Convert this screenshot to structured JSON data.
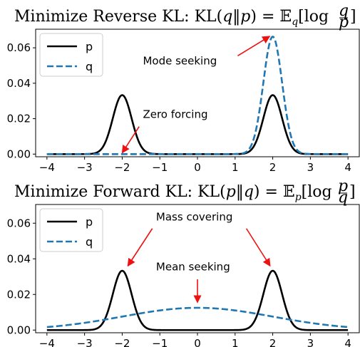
{
  "colors": {
    "p": "#000000",
    "q": "#1f77b4",
    "arrow": "#ee1111"
  },
  "chart_data": [
    {
      "type": "line",
      "title": "Minimize Reverse KL: KL(q‖p) = 𝔼_q[log q/p]",
      "title_parts": {
        "main": "Minimize Reverse KL: KL(",
        "a": "q",
        "sep": "‖",
        "b": "p",
        "mid": ") = ",
        "E": "𝔼",
        "sub": "q",
        "log": "[log ",
        "num": "q",
        "den": "p",
        "close": "]"
      },
      "xlim": [
        -4.3,
        4.3
      ],
      "ylim": [
        -0.0015,
        0.0705
      ],
      "xticks": [
        -4,
        -3,
        -2,
        -1,
        0,
        1,
        2,
        3,
        4
      ],
      "xtick_labels": [
        "−4",
        "−3",
        "−2",
        "−1",
        "0",
        "1",
        "2",
        "3",
        "4"
      ],
      "yticks": [
        0,
        0.02,
        0.04,
        0.06
      ],
      "ytick_labels": [
        "0.00",
        "0.02",
        "0.04",
        "0.06"
      ],
      "grid": false,
      "legend_placement": "upper left",
      "series": [
        {
          "name": "p",
          "style": "solid",
          "x_range": [
            -4,
            4
          ],
          "components": [
            {
              "mean": -2,
              "peak": 0.0333,
              "sd": 0.25
            },
            {
              "mean": 2,
              "peak": 0.0333,
              "sd": 0.25
            }
          ]
        },
        {
          "name": "q",
          "style": "dashed",
          "x_range": [
            -4,
            4
          ],
          "components": [
            {
              "mean": 2,
              "peak": 0.0663,
              "sd": 0.25
            }
          ]
        }
      ],
      "annotations": [
        {
          "text": "Mode seeking",
          "text_at": [
            -1.45,
            0.0505
          ],
          "arrow_from": [
            1.07,
            0.0555
          ],
          "arrow_to": [
            1.92,
            0.0665
          ]
        },
        {
          "text": "Zero forcing",
          "text_at": [
            -1.45,
            0.0205
          ],
          "arrow_from": [
            -1.55,
            0.0155
          ],
          "arrow_to": [
            -2.0,
            0.0007
          ]
        }
      ]
    },
    {
      "type": "line",
      "title": "Minimize Forward KL: KL(p‖q) = 𝔼_p[log p/q]",
      "title_parts": {
        "main": "Minimize Forward KL: KL(",
        "a": "p",
        "sep": "‖",
        "b": "q",
        "mid": ") = ",
        "E": "𝔼",
        "sub": "p",
        "log": "[log ",
        "num": "p",
        "den": "q",
        "close": "]"
      },
      "xlim": [
        -4.3,
        4.3
      ],
      "ylim": [
        -0.0015,
        0.0705
      ],
      "xticks": [
        -4,
        -3,
        -2,
        -1,
        0,
        1,
        2,
        3,
        4
      ],
      "xtick_labels": [
        "−4",
        "−3",
        "−2",
        "−1",
        "0",
        "1",
        "2",
        "3",
        "4"
      ],
      "yticks": [
        0,
        0.02,
        0.04,
        0.06
      ],
      "ytick_labels": [
        "0.00",
        "0.02",
        "0.04",
        "0.06"
      ],
      "grid": false,
      "legend_placement": "upper left",
      "series": [
        {
          "name": "p",
          "style": "solid",
          "x_range": [
            -4,
            4
          ],
          "components": [
            {
              "mean": -2,
              "peak": 0.0333,
              "sd": 0.25
            },
            {
              "mean": 2,
              "peak": 0.0333,
              "sd": 0.25
            }
          ]
        },
        {
          "name": "q",
          "style": "dashed",
          "x_range": [
            -4,
            4
          ],
          "components": [
            {
              "mean": 0,
              "peak": 0.0125,
              "sd": 2.0
            }
          ]
        }
      ],
      "annotations": [
        {
          "text": "Mass covering",
          "text_at": [
            -1.1,
            0.0615
          ],
          "arrows": [
            {
              "from": [
                -1.2,
                0.057
              ],
              "to": [
                -1.85,
                0.036
              ]
            },
            {
              "from": [
                1.3,
                0.057
              ],
              "to": [
                1.93,
                0.036
              ]
            }
          ]
        },
        {
          "text": "Mean seeking",
          "text_at": [
            -1.1,
            0.0335
          ],
          "arrows": [
            {
              "from": [
                0.0,
                0.0285
              ],
              "to": [
                0.0,
                0.0155
              ]
            }
          ]
        }
      ]
    }
  ]
}
